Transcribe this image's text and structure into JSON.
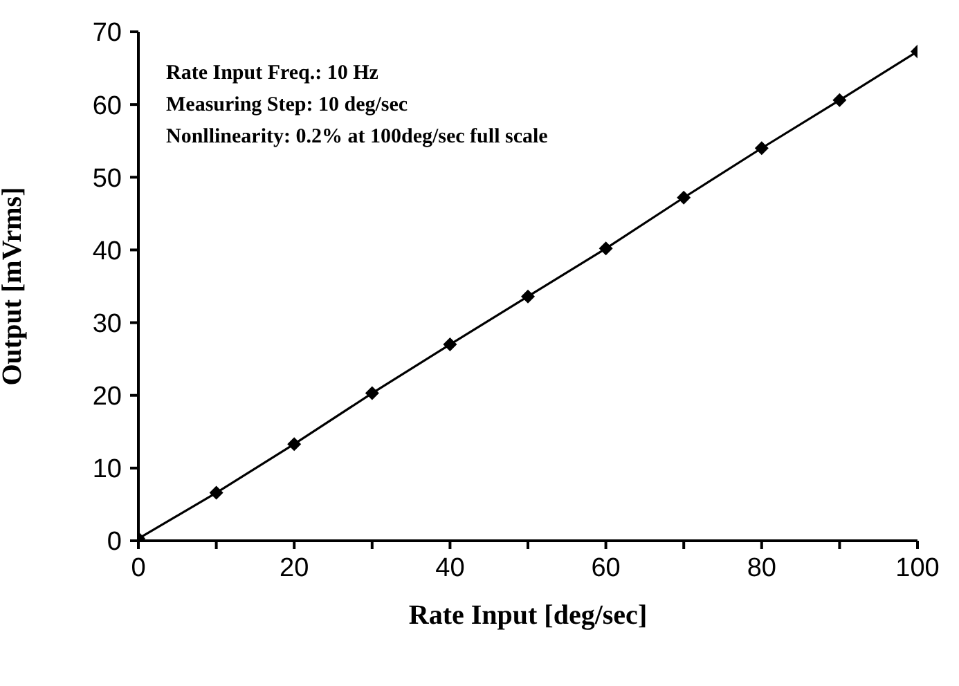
{
  "chart_data": {
    "type": "line",
    "xlabel": "Rate Input [deg/sec]",
    "ylabel": "Output [mVrms]",
    "annotations": [
      "Rate Input Freq.: 10 Hz",
      "Measuring Step: 10 deg/sec",
      "Nonllinearity:  0.2% at 100deg/sec full scale"
    ],
    "x": [
      0,
      10,
      20,
      30,
      40,
      50,
      60,
      70,
      80,
      90,
      100
    ],
    "series": [
      {
        "color": "#000000",
        "values": [
          0.3,
          6.6,
          13.3,
          20.3,
          27.0,
          33.6,
          40.2,
          47.2,
          54.0,
          60.6,
          67.3
        ]
      }
    ],
    "xlim": [
      0,
      100
    ],
    "xticks": [
      0,
      {
        "value": 10,
        "label": null
      },
      20,
      {
        "value": 30,
        "label": null
      },
      40,
      {
        "value": 50,
        "label": null
      },
      60,
      {
        "value": 70,
        "label": null
      },
      80,
      {
        "value": 90,
        "label": null
      },
      100
    ],
    "ylim": [
      0,
      70
    ],
    "yticks": [
      0,
      10,
      20,
      30,
      40,
      50,
      60,
      70
    ],
    "grid": false,
    "legend": false,
    "marker": "diamond",
    "line_style": "solid"
  }
}
